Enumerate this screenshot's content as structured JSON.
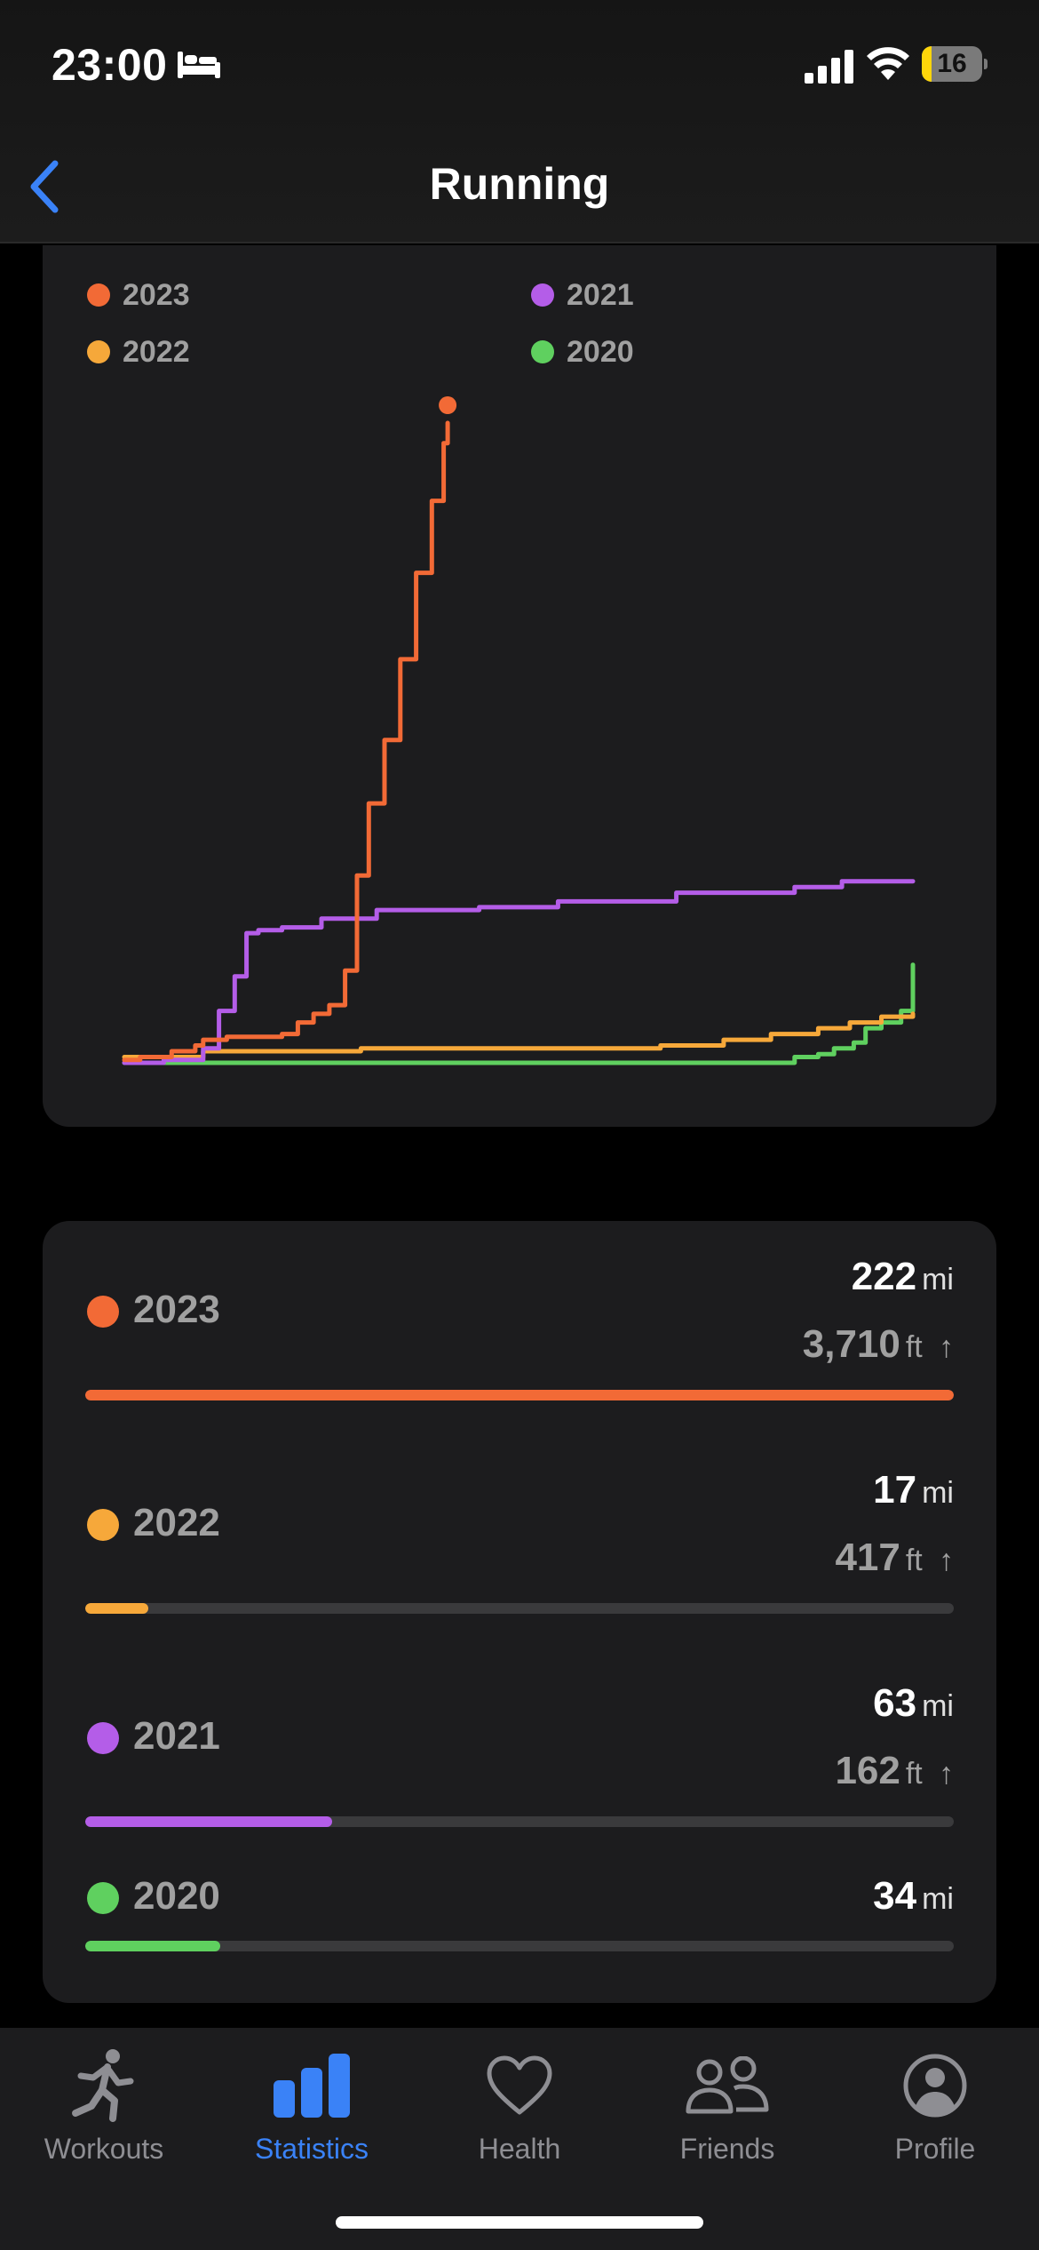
{
  "status_bar": {
    "time": "23:00",
    "battery": "16",
    "battery_level": 0.16
  },
  "nav": {
    "title": "Running",
    "back_icon": "chevron-left-icon"
  },
  "colors": {
    "y2023": "#f26a36",
    "y2022": "#f6a83a",
    "y2021": "#b45de8",
    "y2020": "#5fd05f",
    "accent": "#3a82f7"
  },
  "legend": [
    {
      "label": "2023",
      "color": "#f26a36"
    },
    {
      "label": "2021",
      "color": "#b45de8"
    },
    {
      "label": "2022",
      "color": "#f6a83a"
    },
    {
      "label": "2020",
      "color": "#5fd05f"
    }
  ],
  "chart_data": {
    "type": "line",
    "title": "",
    "xlabel": "",
    "ylabel": "",
    "x_unit": "fraction of year",
    "y_unit": "mi",
    "xlim": [
      0,
      1
    ],
    "ylim": [
      0,
      222
    ],
    "grid": false,
    "legend_position": "top",
    "series": [
      {
        "name": "2023",
        "color": "#f26a36",
        "end_marker": true,
        "points": [
          [
            0,
            1
          ],
          [
            0.02,
            2
          ],
          [
            0.06,
            4
          ],
          [
            0.09,
            6
          ],
          [
            0.1,
            8
          ],
          [
            0.13,
            9
          ],
          [
            0.2,
            10
          ],
          [
            0.22,
            14
          ],
          [
            0.24,
            17
          ],
          [
            0.26,
            20
          ],
          [
            0.28,
            32
          ],
          [
            0.295,
            65
          ],
          [
            0.31,
            90
          ],
          [
            0.33,
            112
          ],
          [
            0.35,
            140
          ],
          [
            0.37,
            170
          ],
          [
            0.39,
            195
          ],
          [
            0.405,
            215
          ],
          [
            0.41,
            222
          ]
        ]
      },
      {
        "name": "2022",
        "color": "#f6a83a",
        "points": [
          [
            0,
            2
          ],
          [
            0.1,
            4
          ],
          [
            0.3,
            5
          ],
          [
            0.55,
            5
          ],
          [
            0.68,
            6
          ],
          [
            0.76,
            8
          ],
          [
            0.82,
            10
          ],
          [
            0.88,
            12
          ],
          [
            0.92,
            14
          ],
          [
            0.96,
            16
          ],
          [
            1.0,
            17
          ]
        ]
      },
      {
        "name": "2021",
        "color": "#b45de8",
        "points": [
          [
            0,
            0
          ],
          [
            0.05,
            1
          ],
          [
            0.1,
            5
          ],
          [
            0.12,
            18
          ],
          [
            0.14,
            30
          ],
          [
            0.155,
            45
          ],
          [
            0.17,
            46
          ],
          [
            0.2,
            47
          ],
          [
            0.25,
            50
          ],
          [
            0.32,
            53
          ],
          [
            0.45,
            54
          ],
          [
            0.55,
            56
          ],
          [
            0.7,
            59
          ],
          [
            0.85,
            61
          ],
          [
            0.91,
            63
          ],
          [
            1.0,
            63
          ]
        ]
      },
      {
        "name": "2020",
        "color": "#5fd05f",
        "points": [
          [
            0,
            0
          ],
          [
            0.5,
            0
          ],
          [
            0.83,
            0
          ],
          [
            0.85,
            2
          ],
          [
            0.88,
            3
          ],
          [
            0.9,
            5
          ],
          [
            0.925,
            7
          ],
          [
            0.94,
            12
          ],
          [
            0.96,
            14
          ],
          [
            0.985,
            18
          ],
          [
            1.0,
            34
          ]
        ]
      }
    ]
  },
  "summary": [
    {
      "year": "2023",
      "distance": "222",
      "distance_unit": "mi",
      "elevation": "3,710",
      "elevation_unit": "ft",
      "elevation_arrow": "↑",
      "color": "#f26a36",
      "fraction": 1.0
    },
    {
      "year": "2022",
      "distance": "17",
      "distance_unit": "mi",
      "elevation": "417",
      "elevation_unit": "ft",
      "elevation_arrow": "↑",
      "color": "#f6a83a",
      "fraction": 0.073
    },
    {
      "year": "2021",
      "distance": "63",
      "distance_unit": "mi",
      "elevation": "162",
      "elevation_unit": "ft",
      "elevation_arrow": "↑",
      "color": "#b45de8",
      "fraction": 0.284
    },
    {
      "year": "2020",
      "distance": "34",
      "distance_unit": "mi",
      "color": "#5fd05f",
      "fraction": 0.155
    }
  ],
  "tabs": [
    {
      "label": "Workouts",
      "icon": "runner-icon",
      "active": false
    },
    {
      "label": "Statistics",
      "icon": "bar-chart-icon",
      "active": true
    },
    {
      "label": "Health",
      "icon": "heart-icon",
      "active": false
    },
    {
      "label": "Friends",
      "icon": "friends-icon",
      "active": false
    },
    {
      "label": "Profile",
      "icon": "profile-icon",
      "active": false
    }
  ]
}
